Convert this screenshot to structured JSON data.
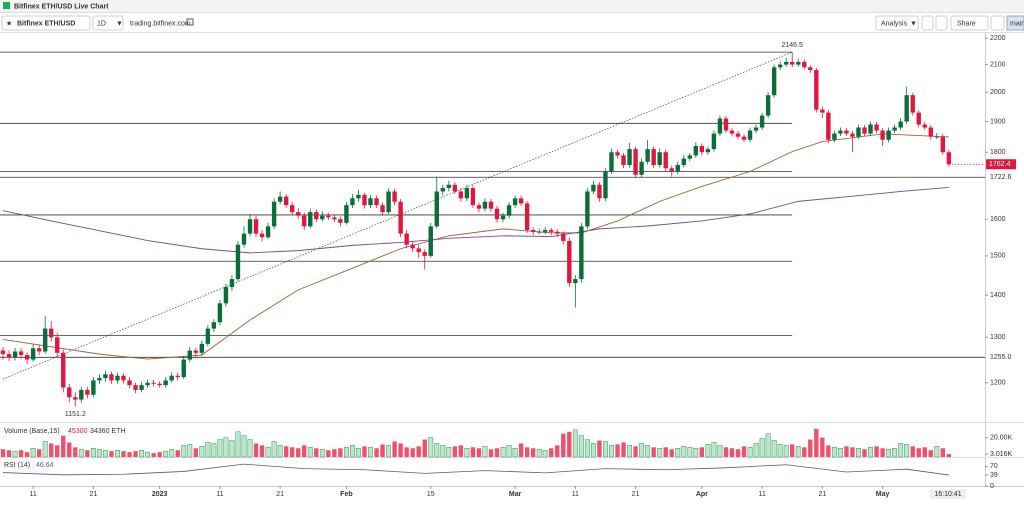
{
  "page": {
    "tab_title": "Bitfinex ETH/USD Live Chart",
    "symbol": "Bitfinex ETH/USD",
    "interval": "1D",
    "url": "trading.bitfinex.com",
    "analysis": "Analysis",
    "share": "Share",
    "layout": "main"
  },
  "chart_data": {
    "type": "candlestick",
    "log_scale": true,
    "up_color": "#0b6e3a",
    "down_color": "#e0173f",
    "xlim": [
      -0.5,
      163
    ],
    "ylim": [
      1120,
      2220
    ],
    "yticks": [
      1200,
      1300,
      1400,
      1500,
      1600,
      1800,
      1900,
      2000,
      2100,
      2200
    ],
    "xticks": [
      {
        "value": 5,
        "label": "11"
      },
      {
        "value": 15,
        "label": "21"
      },
      {
        "value": 26,
        "label": "2023"
      },
      {
        "value": 36,
        "label": "11"
      },
      {
        "value": 46,
        "label": "21"
      },
      {
        "value": 57,
        "label": "Feb"
      },
      {
        "value": 71,
        "label": "15"
      },
      {
        "value": 85,
        "label": "Mar"
      },
      {
        "value": 95,
        "label": "11"
      },
      {
        "value": 105,
        "label": "21"
      },
      {
        "value": 116,
        "label": "Apr"
      },
      {
        "value": 126,
        "label": "11"
      },
      {
        "value": 136,
        "label": "21"
      },
      {
        "value": 146,
        "label": "May"
      }
    ],
    "time_label": "16:10:41",
    "ohlc": [
      [
        1270,
        1278,
        1250,
        1262
      ],
      [
        1262,
        1270,
        1247,
        1255
      ],
      [
        1255,
        1276,
        1248,
        1268
      ],
      [
        1268,
        1275,
        1252,
        1260
      ],
      [
        1260,
        1266,
        1240,
        1250
      ],
      [
        1250,
        1284,
        1245,
        1275
      ],
      [
        1275,
        1282,
        1260,
        1268
      ],
      [
        1268,
        1350,
        1262,
        1320
      ],
      [
        1320,
        1338,
        1290,
        1300
      ],
      [
        1300,
        1310,
        1255,
        1265
      ],
      [
        1265,
        1272,
        1180,
        1190
      ],
      [
        1190,
        1198,
        1160,
        1170
      ],
      [
        1170,
        1180,
        1151.2,
        1165
      ],
      [
        1165,
        1192,
        1158,
        1185
      ],
      [
        1185,
        1192,
        1168,
        1175
      ],
      [
        1175,
        1212,
        1170,
        1205
      ],
      [
        1205,
        1218,
        1198,
        1210
      ],
      [
        1210,
        1226,
        1202,
        1218
      ],
      [
        1218,
        1224,
        1198,
        1205
      ],
      [
        1205,
        1222,
        1198,
        1215
      ],
      [
        1215,
        1220,
        1198,
        1205
      ],
      [
        1205,
        1212,
        1188,
        1195
      ],
      [
        1195,
        1200,
        1178,
        1185
      ],
      [
        1185,
        1202,
        1180,
        1195
      ],
      [
        1195,
        1207,
        1190,
        1200
      ],
      [
        1200,
        1206,
        1192,
        1198
      ],
      [
        1198,
        1203,
        1190,
        1195
      ],
      [
        1195,
        1212,
        1190,
        1205
      ],
      [
        1205,
        1222,
        1200,
        1215
      ],
      [
        1215,
        1222,
        1205,
        1212
      ],
      [
        1212,
        1258,
        1208,
        1250
      ],
      [
        1250,
        1278,
        1244,
        1270
      ],
      [
        1270,
        1276,
        1255,
        1265
      ],
      [
        1265,
        1292,
        1258,
        1285
      ],
      [
        1285,
        1328,
        1280,
        1320
      ],
      [
        1320,
        1342,
        1312,
        1335
      ],
      [
        1335,
        1388,
        1328,
        1380
      ],
      [
        1380,
        1428,
        1372,
        1420
      ],
      [
        1420,
        1450,
        1410,
        1440
      ],
      [
        1440,
        1540,
        1435,
        1530
      ],
      [
        1530,
        1580,
        1522,
        1560
      ],
      [
        1560,
        1615,
        1552,
        1600
      ],
      [
        1600,
        1610,
        1550,
        1560
      ],
      [
        1560,
        1570,
        1538,
        1550
      ],
      [
        1550,
        1590,
        1545,
        1580
      ],
      [
        1580,
        1660,
        1572,
        1650
      ],
      [
        1650,
        1680,
        1642,
        1665
      ],
      [
        1665,
        1672,
        1632,
        1640
      ],
      [
        1640,
        1650,
        1612,
        1620
      ],
      [
        1620,
        1632,
        1600,
        1610
      ],
      [
        1610,
        1618,
        1570,
        1580
      ],
      [
        1580,
        1630,
        1575,
        1620
      ],
      [
        1620,
        1628,
        1592,
        1600
      ],
      [
        1600,
        1622,
        1594,
        1610
      ],
      [
        1610,
        1618,
        1598,
        1605
      ],
      [
        1605,
        1612,
        1592,
        1600
      ],
      [
        1600,
        1608,
        1580,
        1590
      ],
      [
        1590,
        1650,
        1585,
        1640
      ],
      [
        1640,
        1672,
        1632,
        1660
      ],
      [
        1660,
        1685,
        1650,
        1670
      ],
      [
        1670,
        1676,
        1630,
        1640
      ],
      [
        1640,
        1670,
        1632,
        1660
      ],
      [
        1660,
        1668,
        1632,
        1640
      ],
      [
        1640,
        1648,
        1610,
        1620
      ],
      [
        1620,
        1690,
        1615,
        1680
      ],
      [
        1680,
        1688,
        1640,
        1650
      ],
      [
        1650,
        1658,
        1550,
        1560
      ],
      [
        1560,
        1570,
        1520,
        1530
      ],
      [
        1530,
        1540,
        1510,
        1520
      ],
      [
        1520,
        1530,
        1495,
        1510
      ],
      [
        1510,
        1518,
        1465,
        1500
      ],
      [
        1500,
        1590,
        1495,
        1580
      ],
      [
        1580,
        1725,
        1575,
        1680
      ],
      [
        1680,
        1700,
        1668,
        1690
      ],
      [
        1690,
        1712,
        1680,
        1700
      ],
      [
        1700,
        1708,
        1672,
        1680
      ],
      [
        1680,
        1690,
        1650,
        1660
      ],
      [
        1660,
        1700,
        1652,
        1690
      ],
      [
        1690,
        1698,
        1632,
        1640
      ],
      [
        1640,
        1648,
        1620,
        1630
      ],
      [
        1630,
        1660,
        1622,
        1650
      ],
      [
        1650,
        1658,
        1622,
        1630
      ],
      [
        1630,
        1638,
        1590,
        1600
      ],
      [
        1600,
        1618,
        1592,
        1610
      ],
      [
        1610,
        1648,
        1602,
        1640
      ],
      [
        1640,
        1668,
        1632,
        1660
      ],
      [
        1660,
        1668,
        1638,
        1645
      ],
      [
        1645,
        1652,
        1562,
        1570
      ],
      [
        1570,
        1578,
        1556,
        1565
      ],
      [
        1565,
        1574,
        1558,
        1565
      ],
      [
        1565,
        1578,
        1558,
        1570
      ],
      [
        1570,
        1576,
        1556,
        1565
      ],
      [
        1565,
        1572,
        1550,
        1560
      ],
      [
        1560,
        1566,
        1530,
        1540
      ],
      [
        1540,
        1548,
        1420,
        1430
      ],
      [
        1430,
        1450,
        1370,
        1440
      ],
      [
        1440,
        1590,
        1432,
        1580
      ],
      [
        1580,
        1690,
        1572,
        1680
      ],
      [
        1680,
        1712,
        1672,
        1700
      ],
      [
        1700,
        1708,
        1650,
        1660
      ],
      [
        1660,
        1750,
        1652,
        1740
      ],
      [
        1740,
        1812,
        1732,
        1800
      ],
      [
        1800,
        1808,
        1780,
        1790
      ],
      [
        1790,
        1798,
        1750,
        1760
      ],
      [
        1760,
        1830,
        1752,
        1810
      ],
      [
        1810,
        1818,
        1720,
        1730
      ],
      [
        1730,
        1780,
        1722,
        1770
      ],
      [
        1770,
        1840,
        1762,
        1810
      ],
      [
        1810,
        1818,
        1750,
        1760
      ],
      [
        1760,
        1812,
        1752,
        1800
      ],
      [
        1800,
        1808,
        1740,
        1750
      ],
      [
        1750,
        1758,
        1725,
        1740
      ],
      [
        1740,
        1770,
        1732,
        1760
      ],
      [
        1760,
        1792,
        1752,
        1780
      ],
      [
        1780,
        1798,
        1772,
        1790
      ],
      [
        1790,
        1832,
        1782,
        1820
      ],
      [
        1820,
        1828,
        1790,
        1800
      ],
      [
        1800,
        1818,
        1792,
        1810
      ],
      [
        1810,
        1870,
        1802,
        1860
      ],
      [
        1860,
        1920,
        1852,
        1910
      ],
      [
        1910,
        1918,
        1862,
        1870
      ],
      [
        1870,
        1878,
        1850,
        1860
      ],
      [
        1860,
        1868,
        1842,
        1850
      ],
      [
        1850,
        1858,
        1832,
        1840
      ],
      [
        1840,
        1880,
        1832,
        1870
      ],
      [
        1870,
        1890,
        1862,
        1880
      ],
      [
        1880,
        1930,
        1872,
        1920
      ],
      [
        1920,
        2000,
        1912,
        1990
      ],
      [
        1990,
        2100,
        1982,
        2090
      ],
      [
        2090,
        2112,
        2080,
        2100
      ],
      [
        2100,
        2125,
        2092,
        2110
      ],
      [
        2110,
        2146.5,
        2090,
        2100
      ],
      [
        2100,
        2122,
        2092,
        2110
      ],
      [
        2110,
        2118,
        2082,
        2090
      ],
      [
        2090,
        2098,
        2070,
        2080
      ],
      [
        2080,
        2088,
        1930,
        1940
      ],
      [
        1940,
        1950,
        1912,
        1930
      ],
      [
        1930,
        1938,
        1830,
        1840
      ],
      [
        1840,
        1870,
        1832,
        1860
      ],
      [
        1860,
        1880,
        1852,
        1870
      ],
      [
        1870,
        1878,
        1852,
        1860
      ],
      [
        1860,
        1868,
        1800,
        1850
      ],
      [
        1850,
        1890,
        1842,
        1880
      ],
      [
        1880,
        1888,
        1852,
        1860
      ],
      [
        1860,
        1900,
        1852,
        1890
      ],
      [
        1890,
        1898,
        1862,
        1870
      ],
      [
        1870,
        1878,
        1820,
        1840
      ],
      [
        1840,
        1880,
        1832,
        1870
      ],
      [
        1870,
        1890,
        1862,
        1880
      ],
      [
        1880,
        1912,
        1872,
        1900
      ],
      [
        1900,
        2020,
        1892,
        1990
      ],
      [
        1990,
        1998,
        1920,
        1930
      ],
      [
        1930,
        1938,
        1880,
        1890
      ],
      [
        1890,
        1898,
        1872,
        1880
      ],
      [
        1880,
        1888,
        1840,
        1850
      ],
      [
        1850,
        1862,
        1842,
        1850
      ],
      [
        1850,
        1858,
        1792,
        1800
      ],
      [
        1800,
        1808,
        1755,
        1762.4
      ]
    ],
    "moving_averages": [
      {
        "color": "#a0603a",
        "x": [
          0,
          16,
          24,
          33,
          41,
          49,
          58,
          66,
          74,
          83,
          91,
          96,
          102,
          109,
          116,
          124,
          131,
          136,
          146,
          157
        ],
        "values": [
          1295,
          1262,
          1251,
          1260,
          1340,
          1413,
          1468,
          1519,
          1554,
          1573,
          1562,
          1562,
          1595,
          1651,
          1695,
          1740,
          1802,
          1834,
          1859,
          1849
        ]
      },
      {
        "color": "#7b4a8c",
        "x": [
          0,
          8,
          16,
          24,
          33,
          41,
          49,
          58,
          66,
          74,
          83,
          91,
          99,
          107,
          116,
          124,
          132,
          141,
          149,
          157
        ],
        "values": [
          1624,
          1595,
          1568,
          1541,
          1519,
          1508,
          1514,
          1528,
          1536,
          1547,
          1554,
          1552,
          1573,
          1581,
          1595,
          1615,
          1651,
          1666,
          1680,
          1692
        ]
      }
    ],
    "hlines": [
      2146.5,
      1894,
      1740,
      1612,
      1486,
      1304
    ],
    "axis_lines": [
      1722.6,
      {
        "value": 1255,
        "label": "1255.0"
      }
    ],
    "trendline": {
      "x": [
        0,
        131
      ],
      "values": [
        1208,
        2146.5
      ]
    },
    "volume": {
      "title": "Volume (Base,15)",
      "readout": 45300,
      "readout2": "34360 ETH",
      "ylim": [
        0,
        33
      ],
      "yticks": [
        {
          "value": 20,
          "label": "20.00K"
        },
        {
          "value": 3.016,
          "label": "3.016K"
        }
      ],
      "values": [
        8,
        7,
        6,
        7,
        5,
        9,
        8,
        16,
        14,
        12,
        22,
        15,
        10,
        8,
        7,
        9,
        8,
        7,
        6,
        7,
        6,
        5,
        6,
        7,
        5,
        4,
        5,
        6,
        8,
        7,
        12,
        13,
        9,
        11,
        15,
        14,
        18,
        20,
        17,
        26,
        22,
        18,
        14,
        12,
        10,
        16,
        12,
        11,
        10,
        9,
        12,
        10,
        9,
        8,
        7,
        8,
        9,
        10,
        12,
        9,
        11,
        10,
        9,
        13,
        12,
        16,
        14,
        10,
        9,
        11,
        18,
        20,
        14,
        12,
        10,
        11,
        12,
        9,
        10,
        9,
        11,
        8,
        9,
        10,
        12,
        9,
        14,
        10,
        9,
        8,
        7,
        9,
        12,
        24,
        26,
        28,
        22,
        18,
        14,
        17,
        16,
        12,
        13,
        15,
        12,
        11,
        14,
        12,
        10,
        9,
        10,
        8,
        9,
        11,
        10,
        9,
        10,
        13,
        15,
        12,
        10,
        9,
        8,
        11,
        10,
        14,
        19,
        24,
        17,
        13,
        12,
        13,
        11,
        10,
        18,
        29,
        20,
        12,
        10,
        9,
        11,
        10,
        9,
        8,
        10,
        11,
        9,
        8,
        9,
        14,
        13,
        11,
        9,
        10,
        7,
        11,
        9,
        3.016
      ]
    },
    "rsi": {
      "title": "RSI (14)",
      "readout": 46.64,
      "color": "#6a4c9c",
      "ylim": [
        0,
        100
      ],
      "yticks": [
        70,
        39,
        0
      ],
      "x": [
        0,
        10,
        20,
        30,
        40,
        50,
        60,
        70,
        80,
        90,
        100,
        110,
        120,
        130,
        140,
        150,
        157
      ],
      "values": [
        48,
        40,
        42,
        52,
        78,
        62,
        58,
        45,
        55,
        47,
        62,
        58,
        65,
        76,
        50,
        60,
        39
      ]
    }
  }
}
